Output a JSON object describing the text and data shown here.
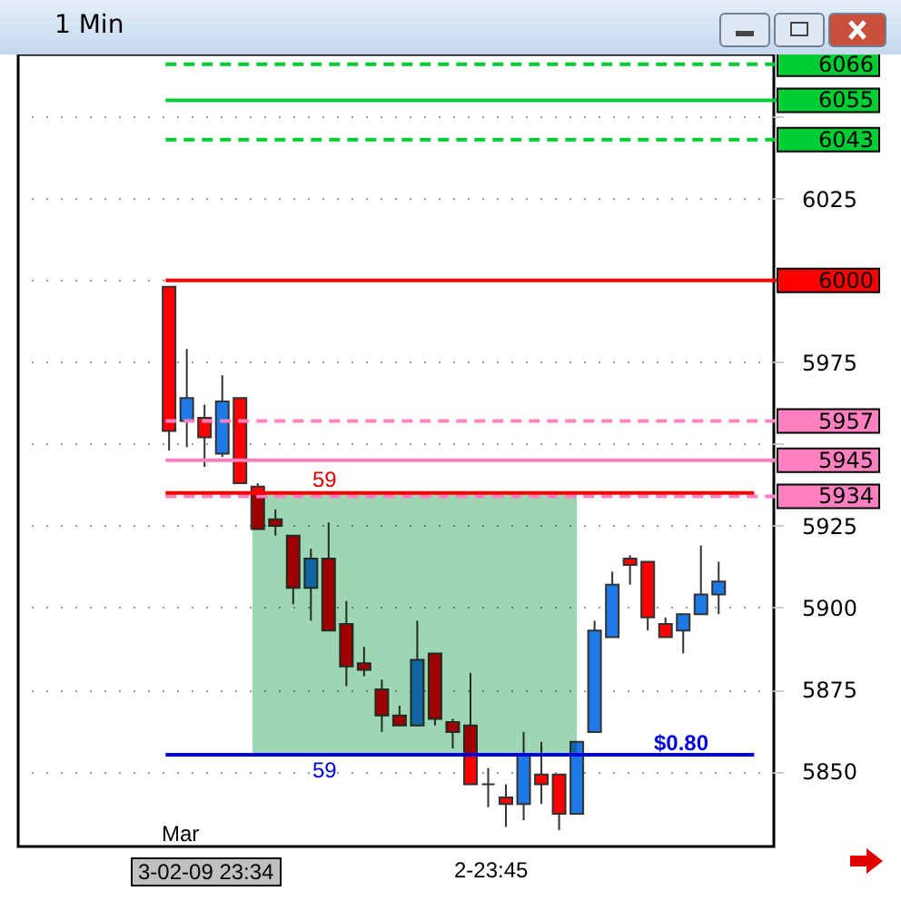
{
  "chart_data": {
    "type": "candlestick",
    "title": "1 Min",
    "categories": [
      null,
      null,
      null,
      null,
      null,
      null,
      null,
      null,
      null,
      null,
      null,
      null,
      null,
      null,
      null,
      null,
      null,
      null,
      null,
      null,
      null,
      null,
      null,
      null,
      null,
      null,
      null,
      null,
      null,
      null,
      null,
      null
    ],
    "ohlc": [
      [
        5998,
        5998,
        5948,
        5954
      ],
      [
        5957,
        5979,
        5949,
        5964
      ],
      [
        5958,
        5962,
        5943,
        5952
      ],
      [
        5947,
        5971,
        5946,
        5963
      ],
      [
        5964,
        5964,
        5938,
        5938
      ],
      [
        5937,
        5938,
        5924,
        5924
      ],
      [
        5927,
        5930,
        5922,
        5925
      ],
      [
        5922,
        5922,
        5901,
        5906
      ],
      [
        5906,
        5918,
        5896,
        5915
      ],
      [
        5915,
        5926,
        5893,
        5893
      ],
      [
        5895,
        5902,
        5876,
        5882
      ],
      [
        5883,
        5888,
        5879,
        5881
      ],
      [
        5875,
        5878,
        5862,
        5867
      ],
      [
        5867,
        5870,
        5864,
        5864
      ],
      [
        5864,
        5896,
        5864,
        5884
      ],
      [
        5886,
        5886,
        5864,
        5866
      ],
      [
        5865,
        5866,
        5857,
        5862
      ],
      [
        5864,
        5880,
        5846,
        5846
      ],
      [
        5846,
        5851,
        5839,
        5846
      ],
      [
        5842,
        5846,
        5833,
        5840
      ],
      [
        5840,
        5862,
        5835,
        5855
      ],
      [
        5849,
        5859,
        5840,
        5846
      ],
      [
        5849,
        5849,
        5832,
        5837
      ],
      [
        5837,
        5859,
        5837,
        5859
      ],
      [
        5862,
        5896,
        5862,
        5893
      ],
      [
        5891,
        5911,
        5891,
        5907
      ],
      [
        5915,
        5916,
        5907,
        5913
      ],
      [
        5914,
        5914,
        5893,
        5897
      ],
      [
        5895,
        5897,
        5891,
        5891
      ],
      [
        5893,
        5898,
        5886,
        5898
      ],
      [
        5898,
        5919,
        5898,
        5904
      ],
      [
        5904,
        5914,
        5898,
        5908
      ]
    ],
    "colors": [
      "#ff0000",
      "#1e78e6",
      "#ff0000",
      "#1e78e6",
      "#ff0000",
      "#ff0000",
      "#ff0000",
      "#ff0000",
      "#1e78e6",
      "#ff0000",
      "#ff0000",
      "#ff0000",
      "#ff0000",
      "#ff0000",
      "#1e78e6",
      "#ff0000",
      "#ff0000",
      "#ff0000",
      "#333333",
      "#ff0000",
      "#1e78e6",
      "#ff0000",
      "#ff0000",
      "#1e78e6",
      "#1e78e6",
      "#1e78e6",
      "#ff0000",
      "#ff0000",
      "#ff0000",
      "#1e78e6",
      "#1e78e6",
      "#1e78e6"
    ],
    "ylim": [
      5827,
      6069
    ],
    "yticks": [
      5850,
      5875,
      5900,
      5925,
      {
        "value": 5950,
        "label": null
      },
      5975,
      {
        "value": 6000,
        "label": null
      },
      6025,
      {
        "value": 6050,
        "label": null
      }
    ],
    "grid": "y",
    "ref_lines": [
      {
        "axis": "y",
        "value": 6066,
        "label": "6066",
        "color": "#00cc33",
        "line_style": "dashed"
      },
      {
        "axis": "y",
        "value": 6055,
        "label": "6055",
        "color": "#00cc33",
        "line_style": "solid"
      },
      {
        "axis": "y",
        "value": 6043,
        "label": "6043",
        "color": "#00cc33",
        "line_style": "dashed"
      },
      {
        "axis": "y",
        "value": 6000,
        "label": "6000",
        "color": "#ff0000",
        "line_style": "solid"
      },
      {
        "axis": "y",
        "value": 5957,
        "label": "5957",
        "color": "#ff80c0",
        "line_style": "dashed"
      },
      {
        "axis": "y",
        "value": 5945,
        "label": "5945",
        "color": "#ff80c0",
        "line_style": "solid"
      },
      {
        "axis": "y",
        "value": 5934,
        "label": "5934",
        "color": "#ff80c0",
        "line_style": "dashed"
      },
      {
        "axis": "y",
        "value": 5935,
        "color": "#ff0000",
        "line_style": "solid"
      },
      {
        "axis": "y",
        "value": 5855,
        "color": "#0000dd",
        "line_style": "solid"
      }
    ],
    "bands": [
      {
        "axis": "y",
        "from": 5855,
        "to": 5935,
        "color": "#9ed6b3"
      }
    ],
    "annotations": [
      "59",
      "59",
      "$0.80",
      "Mar",
      "3-02-09 23:34",
      "2-23:45"
    ]
  }
}
